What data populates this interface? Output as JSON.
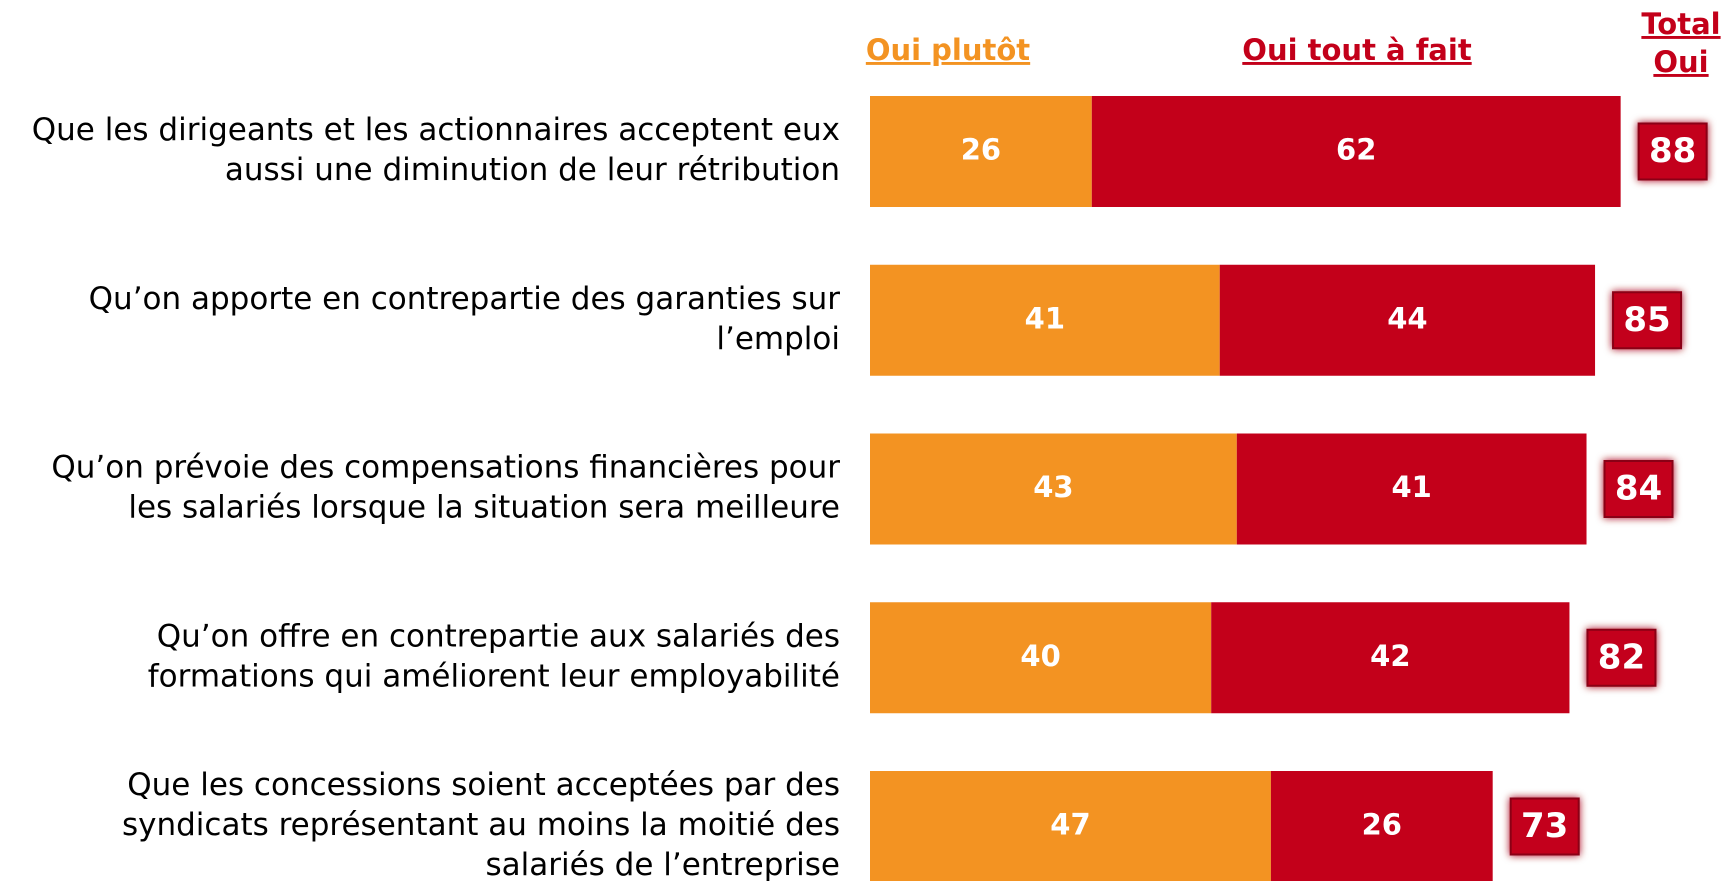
{
  "chart_data": {
    "type": "stacked-bar-horizontal",
    "categories": [
      [
        "Que les dirigeants et les actionnaires acceptent eux",
        "aussi une diminution de leur rétribution"
      ],
      [
        "Qu’on apporte en contrepartie des garanties sur",
        "l’emploi"
      ],
      [
        "Qu’on prévoie des compensations financières pour",
        "les salariés lorsque la situation sera meilleure"
      ],
      [
        "Qu’on offre en contrepartie aux salariés des",
        "formations qui améliorent leur employabilité"
      ],
      [
        "Que les concessions soient acceptées par des",
        "syndicats représentant au moins la moitié des",
        "salariés de l’entreprise"
      ]
    ],
    "series": [
      {
        "name": "Oui plutôt",
        "color": "#f39322",
        "values": [
          26,
          41,
          43,
          40,
          47
        ]
      },
      {
        "name": "Oui tout à fait",
        "color": "#c3001a",
        "values": [
          62,
          44,
          41,
          42,
          26
        ]
      }
    ],
    "total_label": [
      "Total",
      "Oui"
    ],
    "totals": [
      88,
      85,
      84,
      82,
      73
    ],
    "total_color": "#c3001a",
    "xlim": [
      0,
      100
    ]
  }
}
